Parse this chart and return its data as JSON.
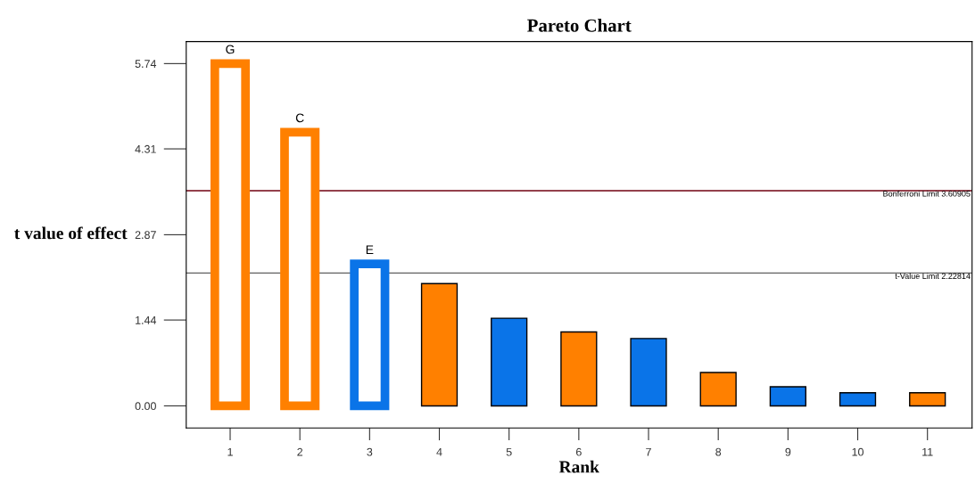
{
  "chart_data": {
    "type": "bar",
    "title": "Pareto Chart",
    "xlabel": "Rank",
    "ylabel": "t value of effect",
    "x": [
      1,
      2,
      3,
      4,
      5,
      6,
      7,
      8,
      9,
      10,
      11
    ],
    "values": [
      5.74,
      4.59,
      2.38,
      2.05,
      1.47,
      1.24,
      1.13,
      0.56,
      0.32,
      0.22,
      0.22
    ],
    "colors": [
      "#ff8000",
      "#ff8000",
      "#0a74e8",
      "#ff8000",
      "#0a74e8",
      "#ff8000",
      "#0a74e8",
      "#ff8000",
      "#0a74e8",
      "#0a74e8",
      "#ff8000"
    ],
    "xlim": [
      0.37,
      11.64
    ],
    "xticks": [
      1,
      2,
      3,
      4,
      5,
      6,
      7,
      8,
      9,
      10,
      11
    ],
    "ylim": [
      -0.37,
      6.11
    ],
    "yticks": [
      {
        "value": 0,
        "label": "0.00"
      },
      {
        "value": 1.44,
        "label": "1.44"
      },
      {
        "value": 2.87,
        "label": "2.87"
      },
      {
        "value": 4.31,
        "label": "4.31"
      },
      {
        "value": 5.74,
        "label": "5.74"
      }
    ],
    "ref_lines": [
      {
        "axis": "y",
        "value": 3.60905,
        "label": "Bonferroni Limit 3.60905",
        "color": "#700010"
      },
      {
        "axis": "y",
        "value": 2.22814,
        "label": "t-Value Limit 2.22814",
        "color": "#606060"
      }
    ],
    "annotations": [
      {
        "text": "G",
        "x": 1,
        "y": 5.74
      },
      {
        "text": "C",
        "x": 2,
        "y": 4.59
      },
      {
        "text": "E",
        "x": 3,
        "y": 2.38
      }
    ],
    "grid": false,
    "legend": false
  }
}
